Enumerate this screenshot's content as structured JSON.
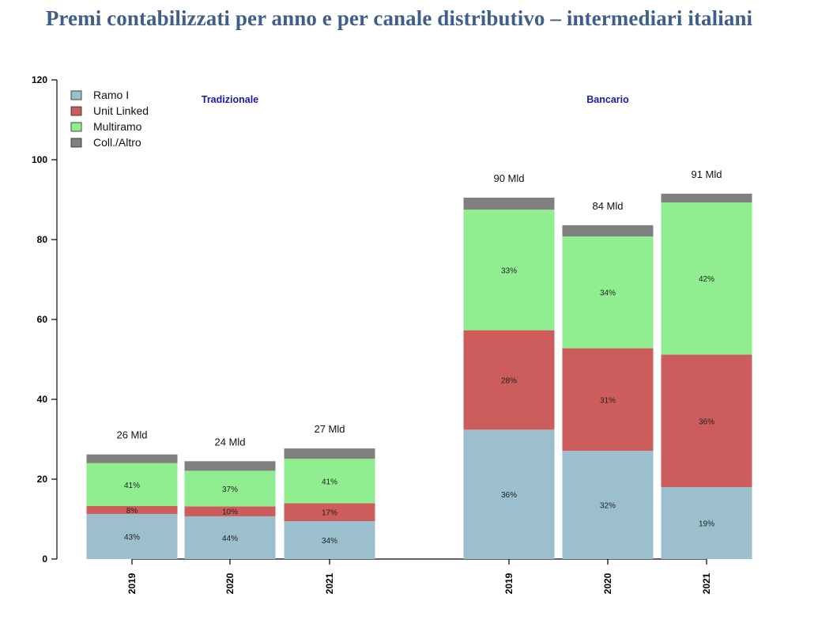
{
  "chart_data": {
    "type": "bar",
    "stacked": true,
    "title": "Premi contabilizzati per anno e per canale distributivo – intermediari italiani",
    "xlabel": "",
    "ylabel": "",
    "ylim": [
      0,
      120
    ],
    "yticks": [
      "0",
      "20",
      "40",
      "60",
      "80",
      "100",
      "120"
    ],
    "grid": false,
    "legend_position": "top-left",
    "groups": [
      {
        "name": "Tradizionale",
        "categories": [
          "2019",
          "2020",
          "2021"
        ],
        "totals_labels": [
          "26 Mld",
          "24 Mld",
          "27 Mld"
        ],
        "series": [
          {
            "name": "Ramo I",
            "values": [
              11.3,
              10.7,
              9.5
            ],
            "pct_labels": [
              "43%",
              "44%",
              "34%"
            ]
          },
          {
            "name": "Unit Linked",
            "values": [
              2.0,
              2.5,
              4.5
            ],
            "pct_labels": [
              "8%",
              "10%",
              "17%"
            ]
          },
          {
            "name": "Multiramo",
            "values": [
              10.7,
              8.9,
              11.1
            ],
            "pct_labels": [
              "41%",
              "37%",
              "41%"
            ]
          },
          {
            "name": "Coll./Altro",
            "values": [
              2.2,
              2.4,
              2.6
            ],
            "pct_labels": [
              "",
              "",
              ""
            ]
          }
        ]
      },
      {
        "name": "Bancario",
        "categories": [
          "2019",
          "2020",
          "2021"
        ],
        "totals_labels": [
          "90 Mld",
          "84 Mld",
          "91 Mld"
        ],
        "series": [
          {
            "name": "Ramo I",
            "values": [
              32.4,
              27.1,
              18.0
            ],
            "pct_labels": [
              "36%",
              "32%",
              "19%"
            ]
          },
          {
            "name": "Unit Linked",
            "values": [
              24.9,
              25.7,
              33.2
            ],
            "pct_labels": [
              "28%",
              "31%",
              "36%"
            ]
          },
          {
            "name": "Multiramo",
            "values": [
              30.2,
              28.0,
              38.1
            ],
            "pct_labels": [
              "33%",
              "34%",
              "42%"
            ]
          },
          {
            "name": "Coll./Altro",
            "values": [
              3.0,
              2.8,
              2.2
            ],
            "pct_labels": [
              "",
              "",
              ""
            ]
          }
        ]
      }
    ],
    "legend": [
      {
        "name": "Ramo I",
        "color": "#9bbfcd"
      },
      {
        "name": "Unit Linked",
        "color": "#cd5c5c"
      },
      {
        "name": "Multiramo",
        "color": "#90ee90"
      },
      {
        "name": "Coll./Altro",
        "color": "#808080"
      }
    ]
  }
}
